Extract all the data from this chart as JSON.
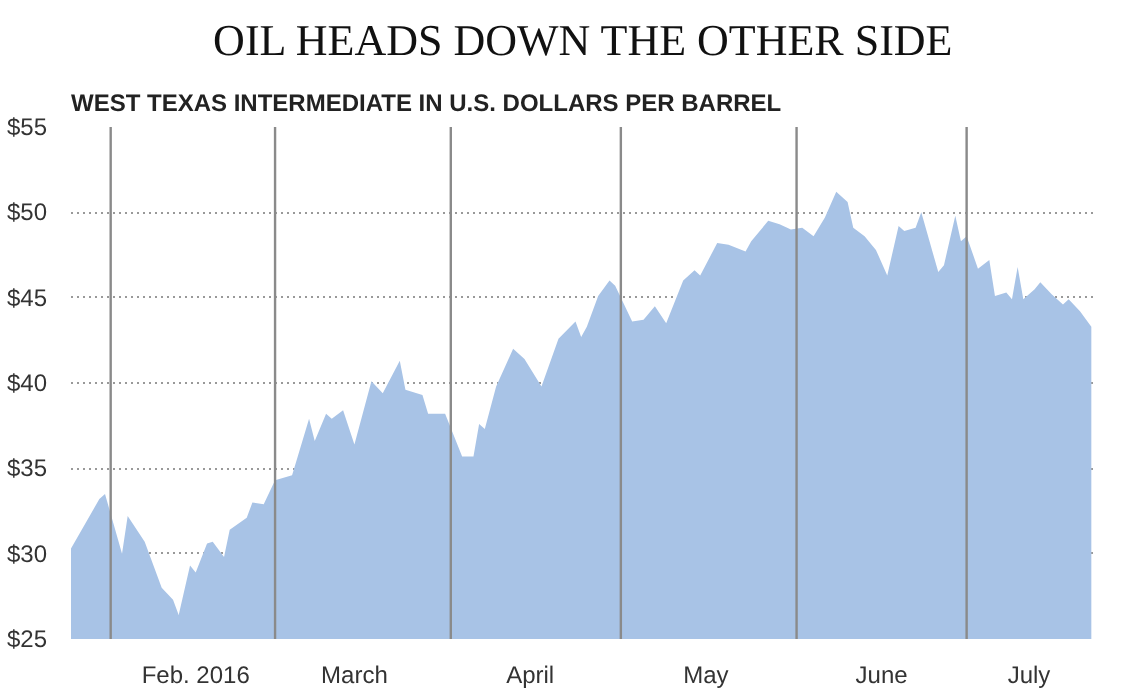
{
  "chart_data": {
    "type": "area",
    "title": "OIL HEADS DOWN THE OTHER SIDE",
    "subtitle": "WEST TEXAS INTERMEDIATE IN U.S. DOLLARS PER BARREL",
    "x": [
      "2016-01-25",
      "2016-01-30",
      "2016-01-31",
      "2016-02-03",
      "2016-02-04",
      "2016-02-07",
      "2016-02-10",
      "2016-02-12",
      "2016-02-13",
      "2016-02-15",
      "2016-02-16",
      "2016-02-18",
      "2016-02-19",
      "2016-02-21",
      "2016-02-22",
      "2016-02-25",
      "2016-02-26",
      "2016-02-28",
      "2016-03-01",
      "2016-03-04",
      "2016-03-05",
      "2016-03-07",
      "2016-03-08",
      "2016-03-10",
      "2016-03-11",
      "2016-03-13",
      "2016-03-15",
      "2016-03-18",
      "2016-03-20",
      "2016-03-23",
      "2016-03-24",
      "2016-03-27",
      "2016-03-28",
      "2016-03-31",
      "2016-04-03",
      "2016-04-05",
      "2016-04-06",
      "2016-04-07",
      "2016-04-09",
      "2016-04-12",
      "2016-04-14",
      "2016-04-17",
      "2016-04-20",
      "2016-04-23",
      "2016-04-24",
      "2016-04-25",
      "2016-04-27",
      "2016-04-29",
      "2016-04-30",
      "2016-05-03",
      "2016-05-05",
      "2016-05-07",
      "2016-05-09",
      "2016-05-12",
      "2016-05-14",
      "2016-05-15",
      "2016-05-18",
      "2016-05-20",
      "2016-05-23",
      "2016-05-24",
      "2016-05-27",
      "2016-05-29",
      "2016-05-31",
      "2016-06-02",
      "2016-06-04",
      "2016-06-06",
      "2016-06-08",
      "2016-06-10",
      "2016-06-11",
      "2016-06-13",
      "2016-06-15",
      "2016-06-17",
      "2016-06-19",
      "2016-06-20",
      "2016-06-22",
      "2016-06-23",
      "2016-06-26",
      "2016-06-27",
      "2016-06-29",
      "2016-06-30",
      "2016-07-01",
      "2016-07-03",
      "2016-07-05",
      "2016-07-06",
      "2016-07-08",
      "2016-07-09",
      "2016-07-10",
      "2016-07-11",
      "2016-07-13",
      "2016-07-14",
      "2016-07-16",
      "2016-07-18",
      "2016-07-19",
      "2016-07-21",
      "2016-07-23"
    ],
    "series": [
      {
        "color": "#a8c3e6",
        "values": [
          30.3,
          33.2,
          33.5,
          30.0,
          32.2,
          30.7,
          28.0,
          27.3,
          26.4,
          29.3,
          28.9,
          30.6,
          30.7,
          29.8,
          31.4,
          32.1,
          33.0,
          32.9,
          34.3,
          34.6,
          35.7,
          37.9,
          36.6,
          38.2,
          37.9,
          38.4,
          36.4,
          40.1,
          39.4,
          41.3,
          39.6,
          39.3,
          38.2,
          38.2,
          35.7,
          35.7,
          37.6,
          37.3,
          39.8,
          42.0,
          41.4,
          39.8,
          42.6,
          43.6,
          42.7,
          43.3,
          45.1,
          46.0,
          45.7,
          43.6,
          43.7,
          44.5,
          43.5,
          46.0,
          46.6,
          46.3,
          48.2,
          48.1,
          47.7,
          48.3,
          49.5,
          49.3,
          49.0,
          49.1,
          48.6,
          49.7,
          51.2,
          50.6,
          49.1,
          48.6,
          47.8,
          46.3,
          49.2,
          48.9,
          49.1,
          50.0,
          46.5,
          46.9,
          49.8,
          48.3,
          48.6,
          46.7,
          47.2,
          45.1,
          45.3,
          44.9,
          46.8,
          44.9,
          45.5,
          45.9,
          45.2,
          44.6,
          44.9,
          44.2,
          43.3
        ]
      }
    ],
    "xlim": [
      "2016-01-25",
      "2016-07-24"
    ],
    "xticks": [
      {
        "value": "2016-02-16",
        "label": "Feb. 2016"
      },
      {
        "value": "2016-03-15",
        "label": "March"
      },
      {
        "value": "2016-04-15",
        "label": "April"
      },
      {
        "value": "2016-05-16",
        "label": "May"
      },
      {
        "value": "2016-06-16",
        "label": "June"
      },
      {
        "value": "2016-07-12",
        "label": "July"
      }
    ],
    "ylim": [
      25,
      55
    ],
    "yticks": [
      {
        "value": 25,
        "label": "$25"
      },
      {
        "value": 30,
        "label": "$30"
      },
      {
        "value": 35,
        "label": "$35"
      },
      {
        "value": 40,
        "label": "$40"
      },
      {
        "value": 45,
        "label": "$45"
      },
      {
        "value": 50,
        "label": "$50"
      },
      {
        "value": 55,
        "label": "$55"
      }
    ],
    "grid": "y",
    "ref_lines": [
      {
        "axis": "x",
        "value": "2016-02-01",
        "label": null,
        "color": "#8a8a8a"
      },
      {
        "axis": "x",
        "value": "2016-03-01",
        "label": null,
        "color": "#8a8a8a"
      },
      {
        "axis": "x",
        "value": "2016-04-01",
        "label": null,
        "color": "#8a8a8a"
      },
      {
        "axis": "x",
        "value": "2016-05-01",
        "label": null,
        "color": "#8a8a8a"
      },
      {
        "axis": "x",
        "value": "2016-06-01",
        "label": null,
        "color": "#8a8a8a"
      },
      {
        "axis": "x",
        "value": "2016-07-01",
        "label": null,
        "color": "#8a8a8a"
      }
    ]
  }
}
